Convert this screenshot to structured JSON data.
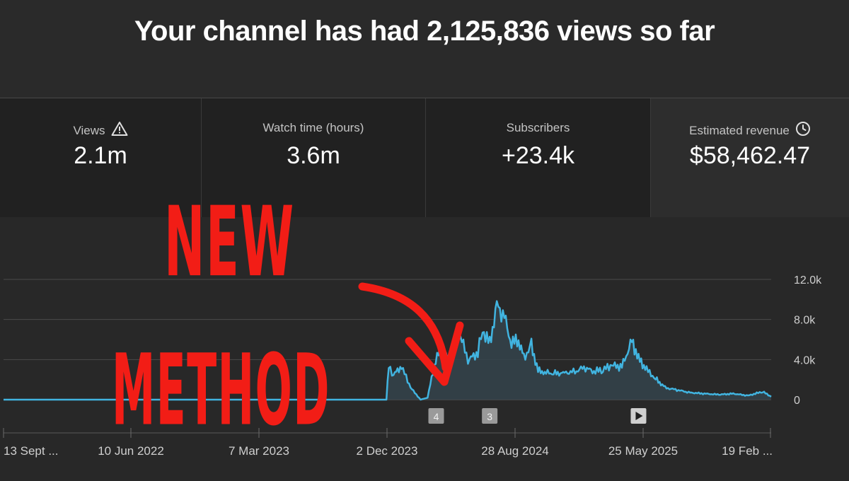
{
  "headline": "Your channel has had 2,125,836 views so far",
  "metrics": [
    {
      "label": "Views",
      "value": "2.1m",
      "icon": "warning-icon"
    },
    {
      "label": "Watch time (hours)",
      "value": "3.6m"
    },
    {
      "label": "Subscribers",
      "value": "+23.4k"
    },
    {
      "label": "Estimated revenue",
      "value": "$58,462.47",
      "icon": "clock-icon"
    }
  ],
  "overlay": {
    "line1": "NEW",
    "line2": "METHOD",
    "color": "#f21d16"
  },
  "chart_data": {
    "type": "area",
    "x_ticks": [
      "13 Sept ...",
      "10 Jun 2022",
      "7 Mar 2023",
      "2 Dec 2023",
      "28 Aug 2024",
      "25 May 2025",
      "19 Feb ..."
    ],
    "y_ticks": [
      "12.0k",
      "8.0k",
      "4.0k",
      "0"
    ],
    "ylim": [
      0,
      12000
    ],
    "line_color": "#41b4e0",
    "series": [
      {
        "x": [
          "2021-09-13",
          "2022-06-10",
          "2023-03-07",
          "2023-11-30",
          "2023-12-05",
          "2023-12-15",
          "2024-01-01",
          "2024-01-20",
          "2024-02-10",
          "2024-02-25",
          "2024-03-10",
          "2024-03-25",
          "2024-04-10",
          "2024-05-01",
          "2024-05-20",
          "2024-06-10",
          "2024-06-20",
          "2024-07-05",
          "2024-07-20",
          "2024-08-05",
          "2024-08-20",
          "2024-09-01",
          "2024-09-15",
          "2024-10-01",
          "2024-10-15",
          "2024-11-01",
          "2024-11-20",
          "2024-12-10",
          "2025-01-01",
          "2025-01-20",
          "2025-02-10",
          "2025-03-01",
          "2025-03-20",
          "2025-04-10",
          "2025-05-01",
          "2025-05-15",
          "2025-06-01",
          "2025-06-20",
          "2025-07-10",
          "2025-08-01",
          "2025-09-01",
          "2025-10-01",
          "2025-11-01",
          "2025-12-01",
          "2026-01-01",
          "2026-02-01",
          "2026-02-19"
        ],
        "y": [
          0,
          0,
          0,
          0,
          3300,
          2500,
          3300,
          1200,
          0,
          200,
          3500,
          5300,
          3700,
          6900,
          3900,
          4700,
          7000,
          5600,
          9400,
          8300,
          5500,
          6100,
          4200,
          5400,
          2900,
          2700,
          2600,
          2700,
          2800,
          3200,
          2800,
          3000,
          3400,
          3300,
          5900,
          4100,
          3000,
          2100,
          1200,
          1000,
          700,
          600,
          500,
          600,
          400,
          800,
          300
        ]
      }
    ],
    "markers": [
      {
        "label": "4",
        "x": "2024-03-14"
      },
      {
        "label": "3",
        "x": "2024-07-05"
      },
      {
        "label": "▶",
        "x": "2025-05-15",
        "icon": "play-icon"
      }
    ]
  }
}
